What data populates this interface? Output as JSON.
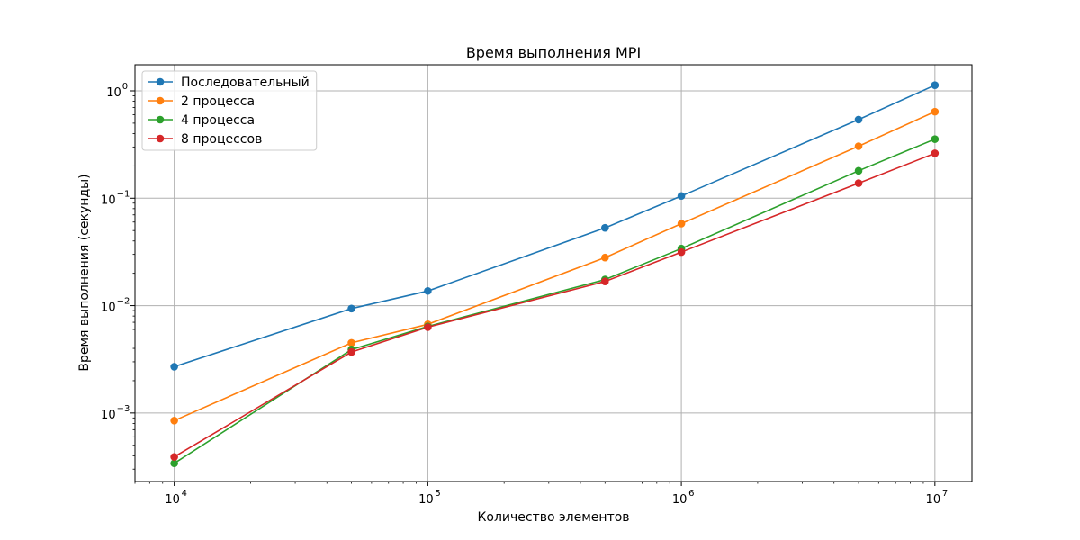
{
  "chart_data": {
    "type": "line",
    "title": "Время выполнения MPI",
    "xlabel": "Количество элементов",
    "ylabel": "Время выполнения (секунды)",
    "x_scale": "log",
    "y_scale": "log",
    "xlim": [
      7000,
      14000000
    ],
    "ylim": [
      0.00023,
      1.75
    ],
    "grid": true,
    "legend_position": "top-left",
    "x_ticks": [
      {
        "value": 10000,
        "base": "10",
        "exp": "4"
      },
      {
        "value": 100000,
        "base": "10",
        "exp": "5"
      },
      {
        "value": 1000000,
        "base": "10",
        "exp": "6"
      },
      {
        "value": 10000000,
        "base": "10",
        "exp": "7"
      }
    ],
    "y_ticks": [
      {
        "value": 0.001,
        "base": "10",
        "exp": "−3"
      },
      {
        "value": 0.01,
        "base": "10",
        "exp": "−2"
      },
      {
        "value": 0.1,
        "base": "10",
        "exp": "−1"
      },
      {
        "value": 1,
        "base": "10",
        "exp": "0"
      }
    ],
    "x": [
      10000,
      50000,
      100000,
      500000,
      1000000,
      5000000,
      10000000
    ],
    "series": [
      {
        "name": "Последовательный",
        "color": "#1f77b4",
        "values": [
          0.0027,
          0.0094,
          0.0137,
          0.053,
          0.105,
          0.54,
          1.13
        ]
      },
      {
        "name": "2 процесса",
        "color": "#ff7f0e",
        "values": [
          0.00085,
          0.0045,
          0.0067,
          0.028,
          0.058,
          0.305,
          0.64
        ]
      },
      {
        "name": "4 процесса",
        "color": "#2ca02c",
        "values": [
          0.00034,
          0.0039,
          0.0064,
          0.0175,
          0.034,
          0.18,
          0.355
        ]
      },
      {
        "name": "8 процессов",
        "color": "#d62728",
        "values": [
          0.00039,
          0.0037,
          0.0063,
          0.0168,
          0.0315,
          0.138,
          0.262
        ]
      }
    ]
  }
}
